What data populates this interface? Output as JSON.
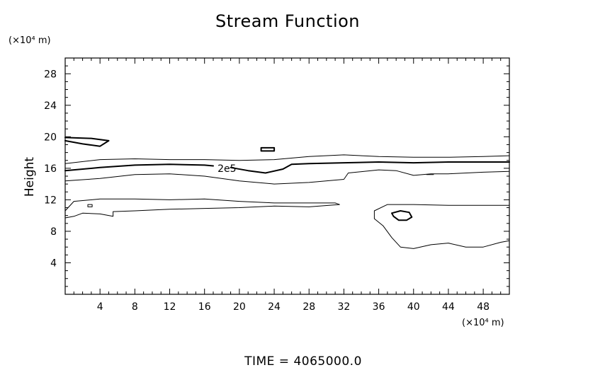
{
  "chart_data": {
    "type": "contour",
    "title": "Stream Function",
    "xlabel": "",
    "ylabel": "Height",
    "x_unit": "(×10⁴ m)",
    "y_unit": "(×10⁴ m)",
    "xlim": [
      0,
      51
    ],
    "ylim": [
      0,
      30
    ],
    "x_ticks": [
      4,
      8,
      12,
      16,
      20,
      24,
      28,
      32,
      36,
      40,
      44,
      48
    ],
    "y_ticks": [
      4,
      8,
      12,
      16,
      20,
      24,
      28
    ],
    "footer": "TIME  =  4065000.0",
    "contour_labels": [
      {
        "text": "2e5",
        "x": 17.5,
        "y": 16.0
      }
    ],
    "contours": [
      {
        "level": "upper",
        "bold": false,
        "points": [
          [
            0,
            16.6
          ],
          [
            4,
            17.1
          ],
          [
            8,
            17.2
          ],
          [
            12,
            17.1
          ],
          [
            16,
            17.1
          ],
          [
            20,
            17.0
          ],
          [
            24,
            17.1
          ],
          [
            28,
            17.5
          ],
          [
            32,
            17.7
          ],
          [
            36,
            17.5
          ],
          [
            40,
            17.4
          ],
          [
            44,
            17.4
          ],
          [
            48,
            17.5
          ],
          [
            51,
            17.6
          ]
        ]
      },
      {
        "level": "2e5",
        "bold": true,
        "points": [
          [
            0,
            15.7
          ],
          [
            4,
            16.1
          ],
          [
            8,
            16.4
          ],
          [
            12,
            16.5
          ],
          [
            16,
            16.4
          ],
          [
            17,
            16.3
          ]
        ]
      },
      {
        "level": "2e5",
        "bold": true,
        "points": [
          [
            19,
            16.1
          ],
          [
            21,
            15.7
          ],
          [
            23,
            15.4
          ],
          [
            25,
            15.9
          ],
          [
            26,
            16.5
          ],
          [
            28,
            16.6
          ],
          [
            32,
            16.7
          ],
          [
            36,
            16.8
          ],
          [
            40,
            16.7
          ],
          [
            44,
            16.8
          ],
          [
            48,
            16.8
          ],
          [
            51,
            16.8
          ]
        ]
      },
      {
        "level": "middle",
        "bold": false,
        "points": [
          [
            0,
            14.4
          ],
          [
            4,
            14.7
          ],
          [
            8,
            15.2
          ],
          [
            12,
            15.3
          ],
          [
            16,
            15.0
          ],
          [
            20,
            14.4
          ],
          [
            24,
            14.0
          ],
          [
            28,
            14.2
          ],
          [
            32,
            14.6
          ],
          [
            32.5,
            15.4
          ],
          [
            36,
            15.8
          ],
          [
            38,
            15.7
          ],
          [
            40,
            15.1
          ],
          [
            42,
            15.3
          ],
          [
            44,
            15.3
          ],
          [
            48,
            15.5
          ],
          [
            51,
            15.6
          ]
        ]
      },
      {
        "level": "lower",
        "bold": false,
        "points": [
          [
            0,
            10.6
          ],
          [
            1,
            11.8
          ],
          [
            4,
            12.1
          ],
          [
            8,
            12.1
          ],
          [
            12,
            12.0
          ],
          [
            16,
            12.1
          ],
          [
            20,
            11.8
          ],
          [
            24,
            11.6
          ],
          [
            28,
            11.6
          ],
          [
            31,
            11.6
          ],
          [
            31.5,
            11.4
          ],
          [
            28,
            11.1
          ],
          [
            24,
            11.2
          ],
          [
            20,
            11.0
          ],
          [
            16,
            10.9
          ],
          [
            12,
            10.8
          ],
          [
            8,
            10.6
          ],
          [
            5.5,
            10.5
          ],
          [
            5.5,
            9.9
          ],
          [
            4,
            10.2
          ],
          [
            2,
            10.3
          ],
          [
            1,
            9.9
          ],
          [
            0,
            9.7
          ]
        ]
      },
      {
        "level": "lower-right",
        "bold": false,
        "points": [
          [
            51,
            11.3
          ],
          [
            48,
            11.3
          ],
          [
            44,
            11.3
          ],
          [
            40,
            11.4
          ],
          [
            37,
            11.4
          ],
          [
            35.5,
            10.6
          ],
          [
            35.5,
            9.6
          ],
          [
            36.5,
            8.7
          ],
          [
            37.5,
            7.2
          ],
          [
            38.5,
            6.0
          ],
          [
            40,
            5.8
          ],
          [
            42,
            6.3
          ],
          [
            44,
            6.5
          ],
          [
            46,
            6.0
          ],
          [
            48,
            6.0
          ],
          [
            50,
            6.6
          ],
          [
            51,
            6.8
          ]
        ]
      },
      {
        "level": "blob-left",
        "bold": true,
        "points": [
          [
            0,
            19.5
          ],
          [
            2,
            19.1
          ],
          [
            4,
            18.8
          ],
          [
            5,
            19.5
          ],
          [
            3,
            19.8
          ],
          [
            0,
            19.9
          ]
        ]
      },
      {
        "level": "blob-mid",
        "bold": true,
        "closed": true,
        "points": [
          [
            22.5,
            18.2
          ],
          [
            24,
            18.2
          ],
          [
            24,
            18.6
          ],
          [
            22.5,
            18.6
          ]
        ]
      },
      {
        "level": "blob-right",
        "bold": true,
        "closed": true,
        "points": [
          [
            37.5,
            10.3
          ],
          [
            38.5,
            10.6
          ],
          [
            39.5,
            10.4
          ],
          [
            39.8,
            9.8
          ],
          [
            39.2,
            9.4
          ],
          [
            38.3,
            9.4
          ],
          [
            37.7,
            9.9
          ]
        ]
      },
      {
        "level": "tiny",
        "bold": false,
        "closed": true,
        "points": [
          [
            2.6,
            11.4
          ],
          [
            3.1,
            11.4
          ],
          [
            3.1,
            11.1
          ],
          [
            2.6,
            11.1
          ]
        ]
      },
      {
        "level": "tiny",
        "bold": false,
        "points": [
          [
            41.5,
            15.2
          ],
          [
            42.3,
            15.2
          ]
        ]
      }
    ]
  },
  "colors": {
    "line": "#000000",
    "background": "#ffffff"
  }
}
